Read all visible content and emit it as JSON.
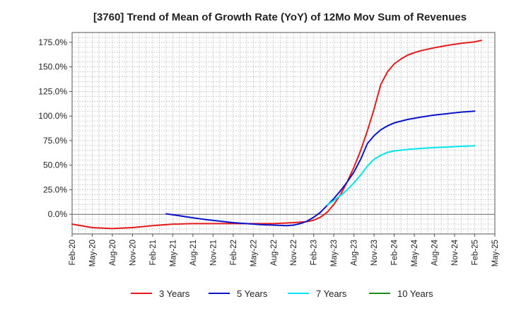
{
  "chart_data": {
    "type": "line",
    "title": "[3760]  Trend of Mean of Growth Rate (YoY) of 12Mo Mov Sum of Revenues",
    "xlabel": "",
    "ylabel": "",
    "ylim": [
      -20,
      185
    ],
    "yticks": [
      0,
      25,
      50,
      75,
      100,
      125,
      150,
      175
    ],
    "ytick_labels": [
      "0.0%",
      "25.0%",
      "50.0%",
      "75.0%",
      "100.0%",
      "125.0%",
      "150.0%",
      "175.0%"
    ],
    "x_tick_labels": [
      "Feb-20",
      "May-20",
      "Aug-20",
      "Nov-20",
      "Feb-21",
      "May-21",
      "Aug-21",
      "Nov-21",
      "Feb-22",
      "May-22",
      "Aug-22",
      "Nov-22",
      "Feb-23",
      "May-23",
      "Aug-23",
      "Nov-23",
      "Feb-24",
      "May-24",
      "Aug-24",
      "Nov-24",
      "Feb-25",
      "May-25"
    ],
    "x_start": "Feb-20",
    "x_unit": "months since Feb-20",
    "grid": true,
    "legend_position": "bottom",
    "series": [
      {
        "name": "3 Years",
        "color": "#e41a1c",
        "points": [
          [
            0,
            -10
          ],
          [
            3,
            -13.5
          ],
          [
            6,
            -14.5
          ],
          [
            9,
            -13.5
          ],
          [
            12,
            -11.5
          ],
          [
            15,
            -10
          ],
          [
            18,
            -9.5
          ],
          [
            21,
            -9.5
          ],
          [
            24,
            -9.5
          ],
          [
            27,
            -9.5
          ],
          [
            30,
            -9.5
          ],
          [
            33,
            -8.5
          ],
          [
            35,
            -7.5
          ],
          [
            36,
            -6
          ],
          [
            37,
            -3
          ],
          [
            38,
            2
          ],
          [
            39,
            10
          ],
          [
            40,
            20
          ],
          [
            41,
            33
          ],
          [
            42,
            48
          ],
          [
            43,
            65
          ],
          [
            44,
            85
          ],
          [
            45,
            107
          ],
          [
            46,
            132
          ],
          [
            47,
            145
          ],
          [
            48,
            153
          ],
          [
            49,
            158
          ],
          [
            50,
            162
          ],
          [
            51,
            164.5
          ],
          [
            52,
            166.5
          ],
          [
            54,
            169.5
          ],
          [
            56,
            172
          ],
          [
            58,
            174
          ],
          [
            60,
            175.5
          ],
          [
            61,
            177
          ]
        ]
      },
      {
        "name": "5 Years",
        "color": "#0a14c8",
        "points": [
          [
            14,
            0.5
          ],
          [
            16,
            -1.5
          ],
          [
            18,
            -3.5
          ],
          [
            20,
            -5.5
          ],
          [
            22,
            -7
          ],
          [
            24,
            -8.5
          ],
          [
            26,
            -9.5
          ],
          [
            28,
            -10.5
          ],
          [
            30,
            -11
          ],
          [
            32,
            -11.5
          ],
          [
            33,
            -11
          ],
          [
            34,
            -9.5
          ],
          [
            35,
            -7
          ],
          [
            36,
            -3
          ],
          [
            37,
            2
          ],
          [
            38,
            9
          ],
          [
            39,
            16
          ],
          [
            40,
            24
          ],
          [
            41,
            33
          ],
          [
            42,
            43
          ],
          [
            43,
            56
          ],
          [
            44,
            72
          ],
          [
            45,
            80
          ],
          [
            46,
            86
          ],
          [
            47,
            90
          ],
          [
            48,
            93
          ],
          [
            50,
            96.5
          ],
          [
            52,
            99
          ],
          [
            54,
            101
          ],
          [
            56,
            102.5
          ],
          [
            58,
            104
          ],
          [
            60,
            105
          ]
        ]
      },
      {
        "name": "7 Years",
        "color": "#00e5ee",
        "points": [
          [
            38,
            9.5
          ],
          [
            39,
            14
          ],
          [
            40,
            19
          ],
          [
            41,
            25
          ],
          [
            42,
            32
          ],
          [
            43,
            40
          ],
          [
            44,
            49
          ],
          [
            45,
            56
          ],
          [
            46,
            60
          ],
          [
            47,
            63
          ],
          [
            48,
            64.5
          ],
          [
            50,
            66
          ],
          [
            52,
            67
          ],
          [
            54,
            68
          ],
          [
            56,
            68.5
          ],
          [
            58,
            69.2
          ],
          [
            60,
            69.8
          ]
        ]
      },
      {
        "name": "10 Years",
        "color": "#1a8c1a",
        "points": []
      }
    ]
  }
}
